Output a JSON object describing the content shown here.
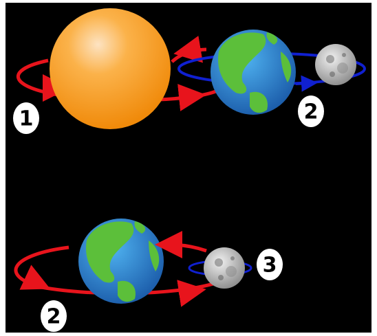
{
  "labels": [
    "1",
    "2",
    "3",
    "2"
  ]
}
